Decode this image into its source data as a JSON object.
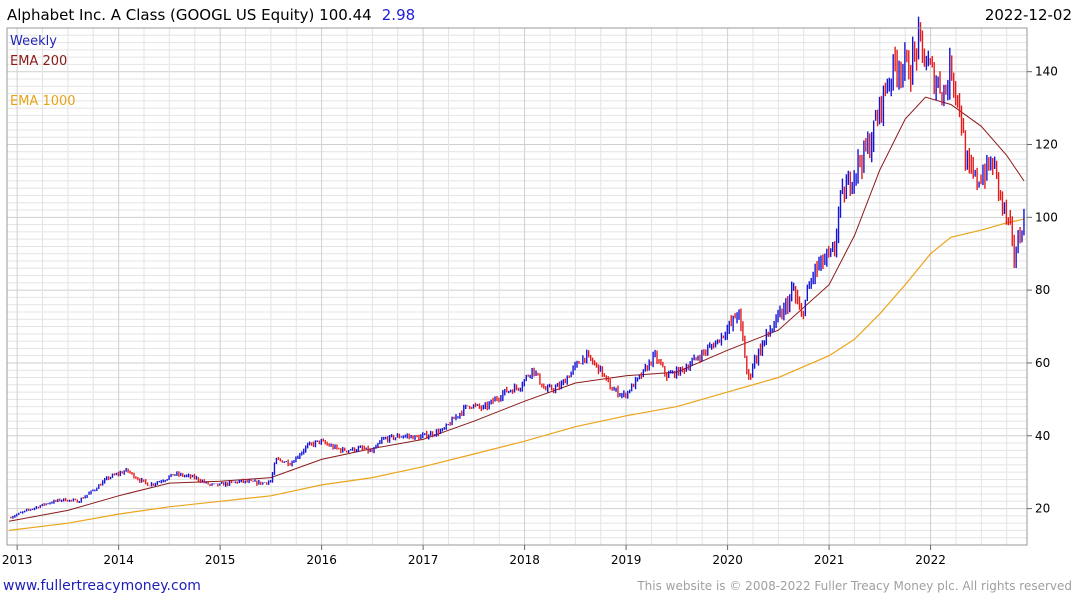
{
  "header": {
    "title": "Alphabet Inc. A Class (GOOGL US Equity) 100.44",
    "change": "2.98",
    "date": "2022-12-02"
  },
  "legend": {
    "weekly": "Weekly",
    "ema200": "EMA 200",
    "ema1000": "EMA 1000"
  },
  "footer": {
    "website": "www.fullertreacymoney.com",
    "copyright": "This website is © 2008-2022 Fuller Treacy Money plc. All rights reserved"
  },
  "colors": {
    "up": "#1515d6",
    "down": "#e51c1c",
    "ema200": "#8b1a1a",
    "ema1000": "#eaa51a"
  },
  "chart_data": {
    "type": "line",
    "title": "Alphabet Inc. A Class (GOOGL US Equity) 100.44 2.98",
    "series_style": "weekly price bars (blue up, red down) with EMA 200 and EMA 1000 overlays",
    "xlim": [
      2012.9,
      2022.95
    ],
    "ylim": [
      10,
      152
    ],
    "y_axis_side": "right",
    "x_ticks": [
      {
        "label": "2013",
        "value": 2013
      },
      {
        "label": "2014",
        "value": 2014
      },
      {
        "label": "2015",
        "value": 2015
      },
      {
        "label": "2016",
        "value": 2016
      },
      {
        "label": "2017",
        "value": 2017
      },
      {
        "label": "2018",
        "value": 2018
      },
      {
        "label": "2019",
        "value": 2019
      },
      {
        "label": "2020",
        "value": 2020
      },
      {
        "label": "2021",
        "value": 2021
      },
      {
        "label": "2022",
        "value": 2022
      }
    ],
    "y_ticks": [
      {
        "label": "20",
        "value": 20
      },
      {
        "label": "40",
        "value": 40
      },
      {
        "label": "60",
        "value": 60
      },
      {
        "label": "80",
        "value": 80
      },
      {
        "label": "100",
        "value": 100
      },
      {
        "label": "120",
        "value": 120
      },
      {
        "label": "140",
        "value": 140
      }
    ],
    "price_path": [
      [
        2012.92,
        17.5
      ],
      [
        2013.1,
        19.5
      ],
      [
        2013.3,
        21.5
      ],
      [
        2013.45,
        22.5
      ],
      [
        2013.6,
        22.0
      ],
      [
        2013.75,
        25.0
      ],
      [
        2013.9,
        28.5
      ],
      [
        2014.08,
        30.5
      ],
      [
        2014.2,
        28.0
      ],
      [
        2014.3,
        26.5
      ],
      [
        2014.45,
        28.0
      ],
      [
        2014.55,
        29.5
      ],
      [
        2014.75,
        28.5
      ],
      [
        2014.9,
        26.5
      ],
      [
        2015.0,
        26.5
      ],
      [
        2015.2,
        27.5
      ],
      [
        2015.4,
        27.0
      ],
      [
        2015.5,
        27.5
      ],
      [
        2015.55,
        33.5
      ],
      [
        2015.7,
        32.5
      ],
      [
        2015.85,
        37.0
      ],
      [
        2015.98,
        38.5
      ],
      [
        2016.1,
        37.0
      ],
      [
        2016.2,
        36.0
      ],
      [
        2016.4,
        36.5
      ],
      [
        2016.5,
        35.5
      ],
      [
        2016.6,
        39.0
      ],
      [
        2016.8,
        40.0
      ],
      [
        2016.95,
        39.5
      ],
      [
        2017.2,
        41.5
      ],
      [
        2017.35,
        46.0
      ],
      [
        2017.45,
        48.5
      ],
      [
        2017.6,
        47.5
      ],
      [
        2017.8,
        52.0
      ],
      [
        2017.95,
        53.5
      ],
      [
        2018.08,
        58.5
      ],
      [
        2018.2,
        52.5
      ],
      [
        2018.35,
        53.5
      ],
      [
        2018.5,
        59.0
      ],
      [
        2018.6,
        62.0
      ],
      [
        2018.75,
        58.0
      ],
      [
        2018.85,
        53.0
      ],
      [
        2018.98,
        51.0
      ],
      [
        2019.15,
        56.5
      ],
      [
        2019.28,
        62.0
      ],
      [
        2019.4,
        56.5
      ],
      [
        2019.55,
        58.0
      ],
      [
        2019.75,
        62.5
      ],
      [
        2019.9,
        66.0
      ],
      [
        2020.05,
        71.0
      ],
      [
        2020.1,
        74.5
      ],
      [
        2020.15,
        66.5
      ],
      [
        2020.2,
        55.0
      ],
      [
        2020.25,
        60.0
      ],
      [
        2020.4,
        68.0
      ],
      [
        2020.55,
        74.0
      ],
      [
        2020.65,
        80.0
      ],
      [
        2020.72,
        72.5
      ],
      [
        2020.85,
        85.0
      ],
      [
        2020.95,
        88.0
      ],
      [
        2021.05,
        90.0
      ],
      [
        2021.1,
        103.5
      ],
      [
        2021.25,
        113.0
      ],
      [
        2021.4,
        120.0
      ],
      [
        2021.55,
        135.0
      ],
      [
        2021.65,
        142.0
      ],
      [
        2021.8,
        141.0
      ],
      [
        2021.88,
        148.0
      ],
      [
        2021.95,
        143.0
      ],
      [
        2022.05,
        137.5
      ],
      [
        2022.15,
        134.5
      ],
      [
        2022.2,
        142.0
      ],
      [
        2022.3,
        128.0
      ],
      [
        2022.35,
        114.0
      ],
      [
        2022.45,
        110.0
      ],
      [
        2022.55,
        113.0
      ],
      [
        2022.62,
        115.0
      ],
      [
        2022.7,
        104.0
      ],
      [
        2022.78,
        97.0
      ],
      [
        2022.82,
        89.0
      ],
      [
        2022.88,
        95.0
      ],
      [
        2022.92,
        100.4
      ]
    ],
    "ema200_path": [
      [
        2012.92,
        16.5
      ],
      [
        2013.5,
        19.5
      ],
      [
        2014.0,
        23.5
      ],
      [
        2014.5,
        27.0
      ],
      [
        2015.0,
        27.5
      ],
      [
        2015.5,
        28.5
      ],
      [
        2016.0,
        33.5
      ],
      [
        2016.5,
        36.5
      ],
      [
        2017.0,
        39.0
      ],
      [
        2017.5,
        44.0
      ],
      [
        2018.0,
        49.5
      ],
      [
        2018.5,
        54.5
      ],
      [
        2019.0,
        56.5
      ],
      [
        2019.5,
        57.5
      ],
      [
        2020.0,
        63.5
      ],
      [
        2020.5,
        69.0
      ],
      [
        2021.0,
        81.5
      ],
      [
        2021.25,
        95.0
      ],
      [
        2021.5,
        113.0
      ],
      [
        2021.75,
        127.0
      ],
      [
        2021.95,
        133.0
      ],
      [
        2022.2,
        131.0
      ],
      [
        2022.5,
        125.0
      ],
      [
        2022.75,
        117.0
      ],
      [
        2022.92,
        110.0
      ]
    ],
    "ema1000_path": [
      [
        2012.92,
        14.0
      ],
      [
        2013.5,
        16.0
      ],
      [
        2014.0,
        18.5
      ],
      [
        2014.5,
        20.5
      ],
      [
        2015.0,
        22.0
      ],
      [
        2015.5,
        23.5
      ],
      [
        2016.0,
        26.5
      ],
      [
        2016.5,
        28.5
      ],
      [
        2017.0,
        31.5
      ],
      [
        2017.5,
        35.0
      ],
      [
        2018.0,
        38.5
      ],
      [
        2018.5,
        42.5
      ],
      [
        2019.0,
        45.5
      ],
      [
        2019.5,
        48.0
      ],
      [
        2020.0,
        52.0
      ],
      [
        2020.5,
        56.0
      ],
      [
        2021.0,
        62.0
      ],
      [
        2021.25,
        66.5
      ],
      [
        2021.5,
        73.5
      ],
      [
        2021.75,
        81.5
      ],
      [
        2022.0,
        90.0
      ],
      [
        2022.2,
        94.5
      ],
      [
        2022.5,
        96.5
      ],
      [
        2022.75,
        98.5
      ],
      [
        2022.92,
        99.5
      ]
    ]
  }
}
